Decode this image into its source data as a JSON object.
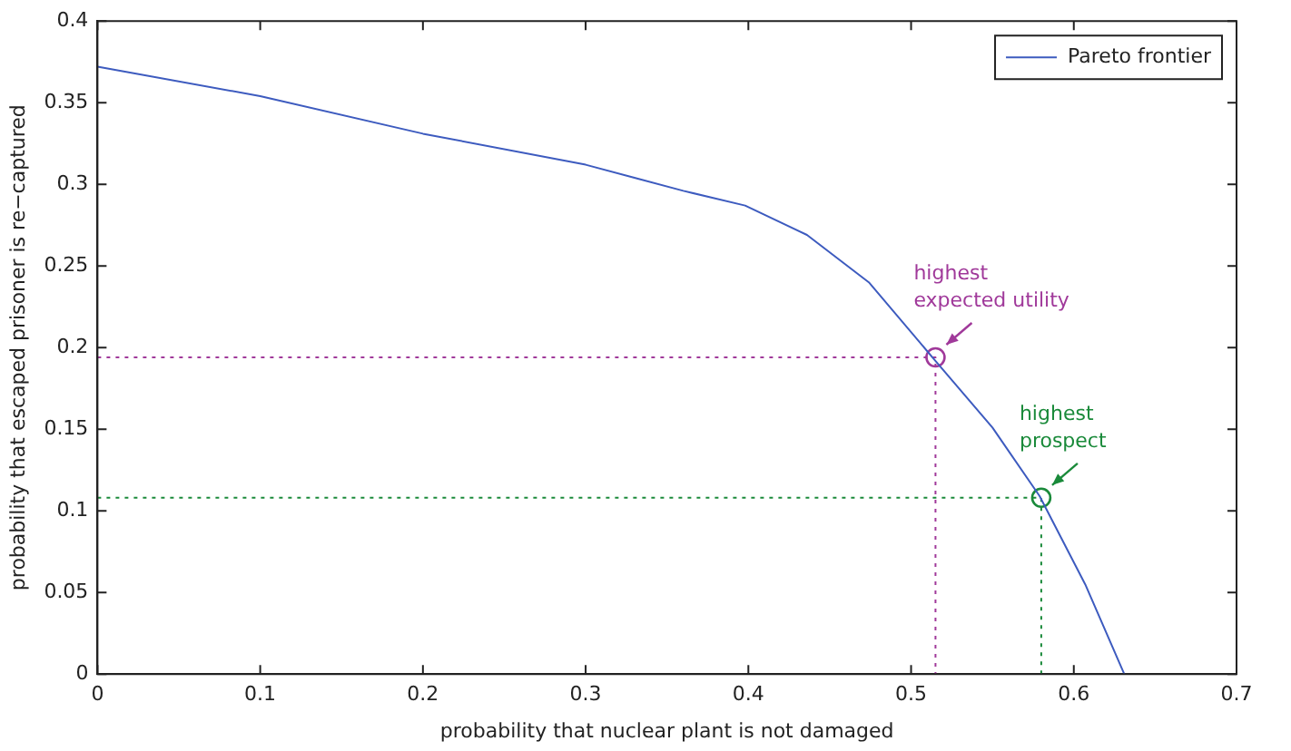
{
  "chart_data": {
    "type": "line",
    "xlabel": "probability that nuclear plant is not damaged",
    "ylabel": "probability that escaped prisoner is re−captured",
    "xlim": [
      0,
      0.7
    ],
    "xticks": [
      0,
      0.1,
      0.2,
      0.3,
      0.4,
      0.5,
      0.6,
      0.7
    ],
    "ylim": [
      0,
      0.4
    ],
    "yticks": [
      0,
      0.05,
      0.1,
      0.15,
      0.2,
      0.25,
      0.3,
      0.35,
      0.4
    ],
    "grid": false,
    "legend": "top right",
    "marker": "none",
    "series": [
      {
        "name": "Pareto frontier",
        "color": "#3d5bbf",
        "line_style": "solid",
        "x": [
          0,
          0.1,
          0.2,
          0.3,
          0.33,
          0.36,
          0.398,
          0.436,
          0.474,
          0.514,
          0.55,
          0.579,
          0.607,
          0.631
        ],
        "values": [
          0.372,
          0.354,
          0.331,
          0.312,
          0.304,
          0.296,
          0.287,
          0.269,
          0.24,
          0.193,
          0.151,
          0.109,
          0.055,
          0
        ]
      },
      {
        "color": "#a0399a",
        "line_style": "dotted",
        "x": [
          0,
          0.515,
          0.515
        ],
        "values": [
          0.194,
          0.194,
          0
        ]
      },
      {
        "color": "#1a8a3a",
        "line_style": "dotted",
        "x": [
          0,
          0.58,
          0.58
        ],
        "values": [
          0.108,
          0.108,
          0
        ]
      },
      {
        "type": "scatter",
        "marker": "circle",
        "colors": [
          "#a0399a",
          "#1a8a3a"
        ],
        "x": [
          0.515,
          0.58
        ],
        "values": [
          0.194,
          0.108
        ]
      }
    ],
    "annotations": [
      {
        "text": "highest\nexpected utility",
        "x": 0.515,
        "y": 0.194
      },
      {
        "text": "highest\nprospect",
        "x": 0.58,
        "y": 0.108
      }
    ]
  }
}
